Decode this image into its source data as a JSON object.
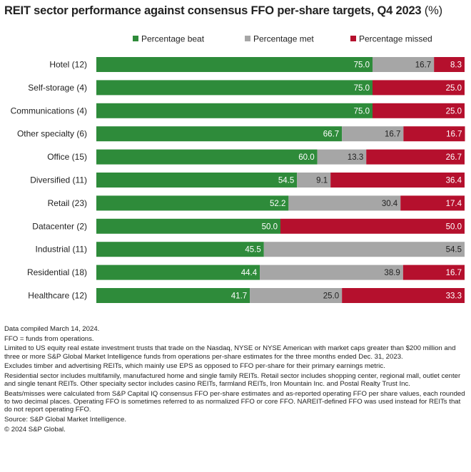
{
  "title": "REIT sector performance against consensus FFO per-share targets, Q4 2023",
  "title_unit": "(%)",
  "colors": {
    "beat": "#2e8b3a",
    "met": "#a6a6a6",
    "missed": "#b5102d"
  },
  "chart_data": {
    "type": "bar",
    "orientation": "horizontal",
    "stacked": true,
    "legend_position": "top",
    "xlim": [
      0,
      100
    ],
    "categories": [
      "Hotel (12)",
      "Self-storage (4)",
      "Communications (4)",
      "Other specialty (6)",
      "Office (15)",
      "Diversified (11)",
      "Retail (23)",
      "Datacenter (2)",
      "Industrial (11)",
      "Residential (18)",
      "Healthcare (12)"
    ],
    "series": [
      {
        "name": "Percentage beat",
        "key": "beat",
        "values": [
          75.0,
          75.0,
          75.0,
          66.7,
          60.0,
          54.5,
          52.2,
          50.0,
          45.5,
          44.4,
          41.7
        ],
        "labels": [
          "75.0",
          "75.0",
          "75.0",
          "66.7",
          "60.0",
          "54.5",
          "52.2",
          "50.0",
          "45.5",
          "44.4",
          "41.7"
        ]
      },
      {
        "name": "Percentage met",
        "key": "met",
        "values": [
          16.7,
          0,
          0,
          16.7,
          13.3,
          9.1,
          30.4,
          0,
          54.5,
          38.9,
          25.0
        ],
        "labels": [
          "16.7",
          "",
          "",
          "16.7",
          "13.3",
          "9.1",
          "30.4",
          "",
          "54.5",
          "38.9",
          "25.0"
        ]
      },
      {
        "name": "Percentage missed",
        "key": "missed",
        "values": [
          8.3,
          25.0,
          25.0,
          16.7,
          26.7,
          36.4,
          17.4,
          50.0,
          0,
          16.7,
          33.3
        ],
        "labels": [
          "8.3",
          "25.0",
          "25.0",
          "16.7",
          "26.7",
          "36.4",
          "17.4",
          "50.0",
          "",
          "16.7",
          "33.3"
        ]
      }
    ]
  },
  "notes": [
    "Data compiled March 14, 2024.",
    "FFO = funds from operations.",
    "Limited to US equity real estate investment trusts that trade on the Nasdaq, NYSE or NYSE American with market caps greater than $200 million and three or more S&P Global Market Intelligence funds from operations per-share estimates for the three months ended Dec. 31, 2023.",
    "Excludes timber and advertising REITs, which mainly use EPS as opposed to FFO per-share for their primary earnings metric.",
    "Residential sector includes multifamily, manufactured home and single family REITs. Retail sector includes shopping center, regional mall, outlet center and single tenant REITs. Other specialty sector includes casino REITs, farmland REITs, Iron Mountain Inc. and Postal Realty Trust Inc.",
    "Beats/misses were calculated from S&P Capital IQ consensus FFO per-share estimates and as-reported operating FFO per share values, each rounded to two decimal places. Operating FFO is sometimes referred to as normalized FFO or core FFO. NAREIT-defined FFO was used instead for REITs that do not report operating FFO.",
    "Source: S&P Global Market Intelligence.",
    "© 2024 S&P Global."
  ]
}
